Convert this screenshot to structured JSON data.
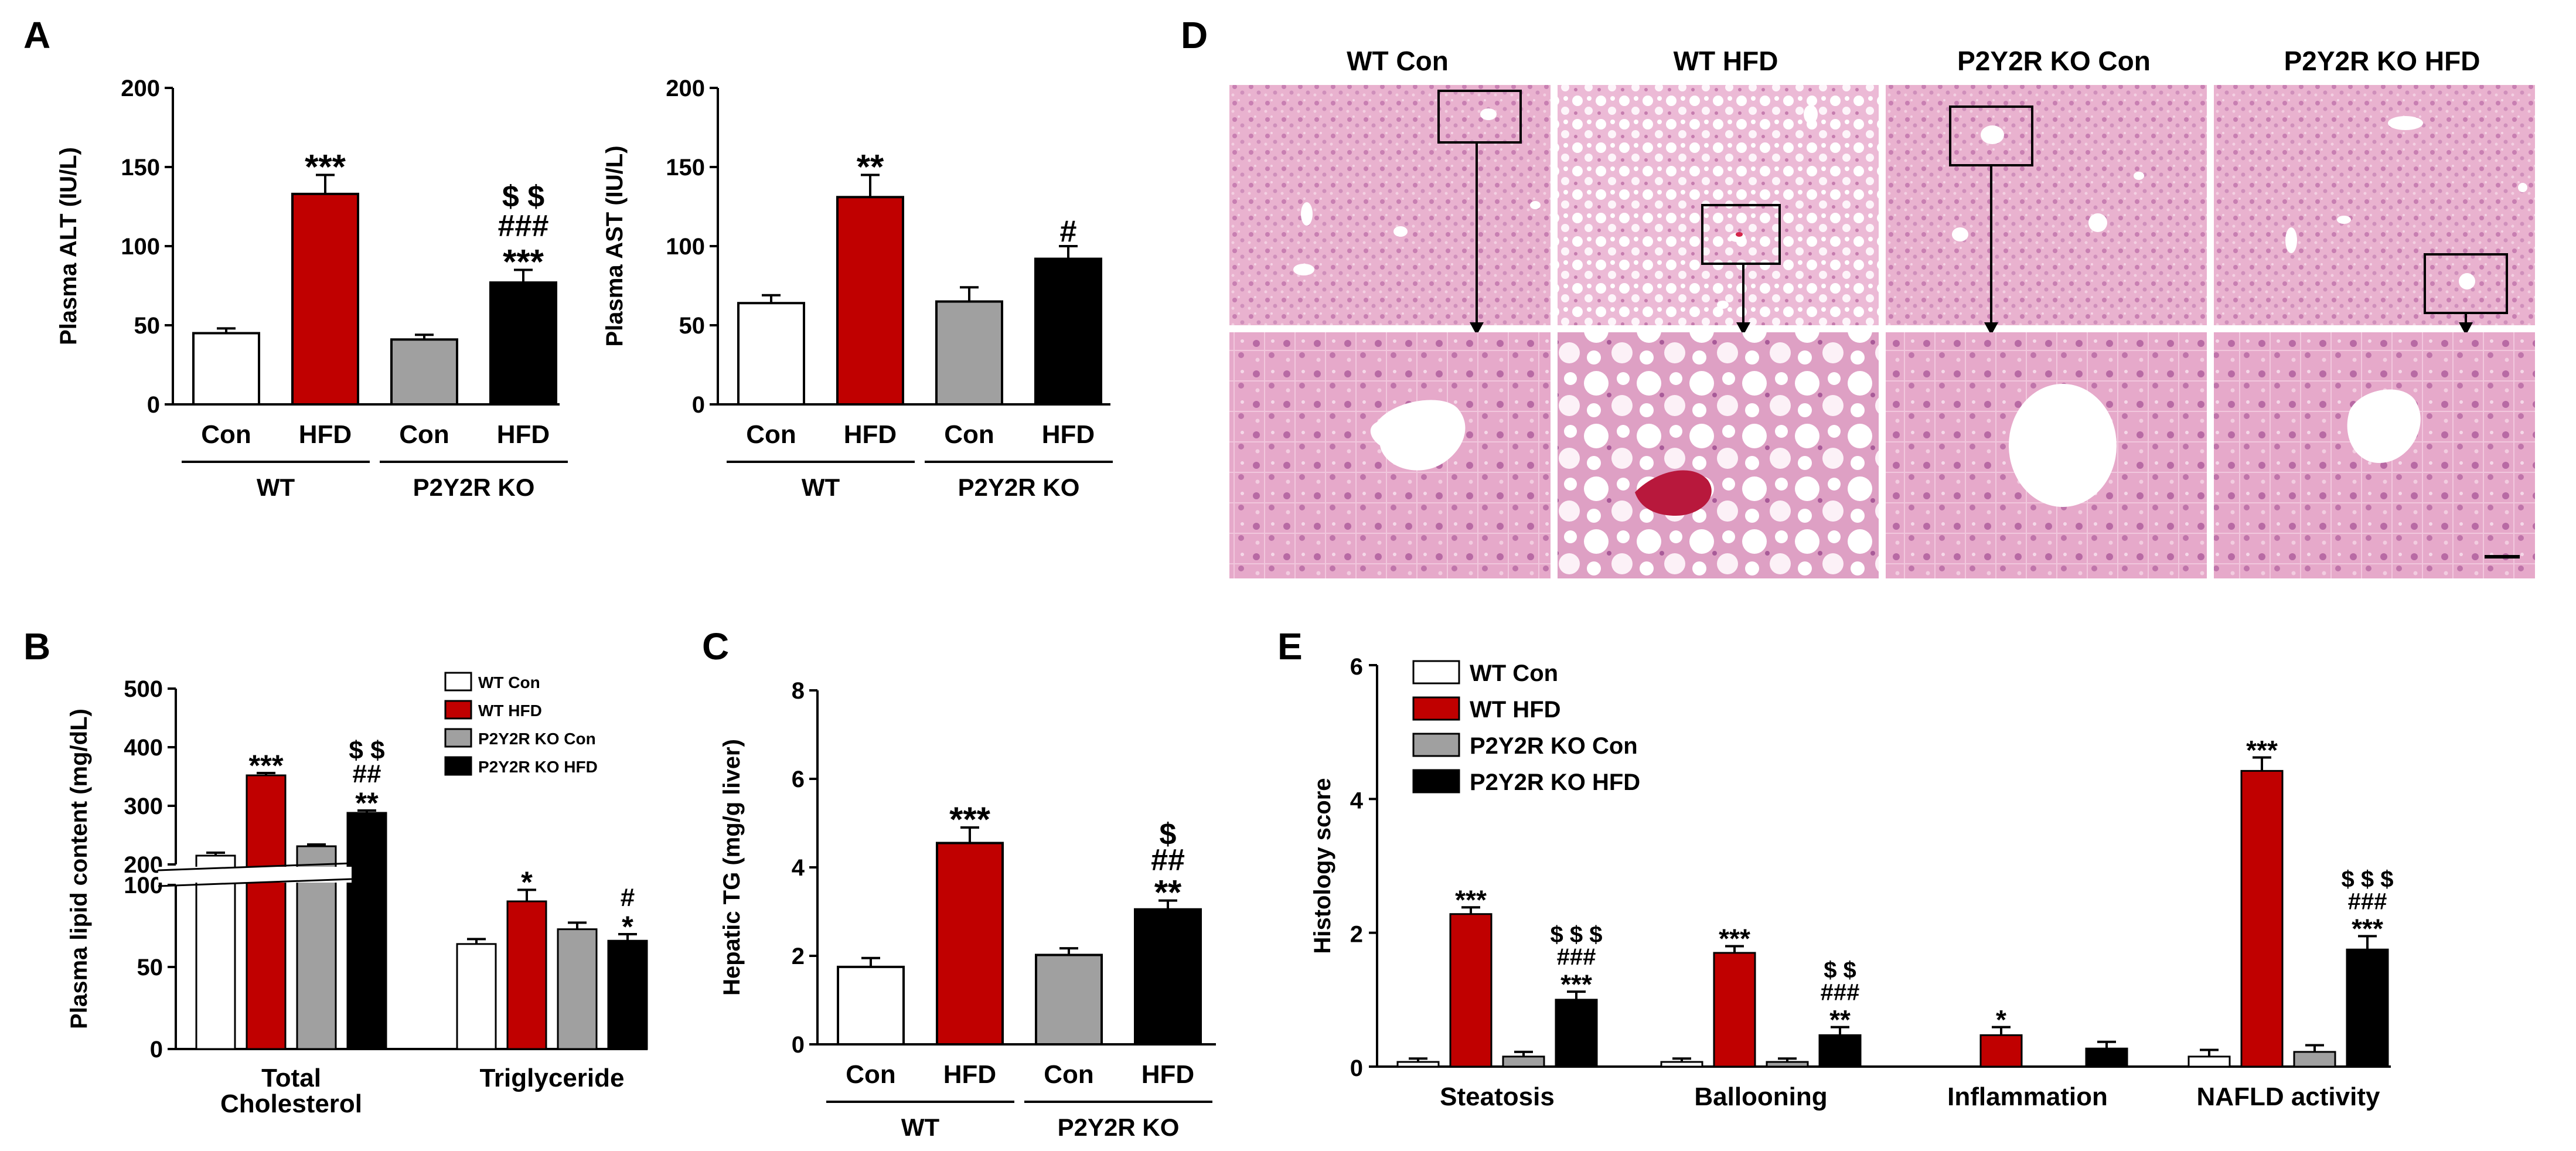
{
  "panels": {
    "a": "A",
    "b": "B",
    "c": "C",
    "d": "D",
    "e": "E"
  },
  "colors": {
    "WT Con": "#ffffff",
    "WT HFD": "#c00000",
    "P2Y2R KO Con": "#a0a0a0",
    "P2Y2R KO HFD": "#000000"
  },
  "chart_data": [
    {
      "id": "alt",
      "type": "bar",
      "ylabel": "Plasma ALT (IU/L)",
      "ylim": [
        0,
        200
      ],
      "yticks": [
        0,
        50,
        100,
        150,
        200
      ],
      "categories": [
        "Con",
        "HFD",
        "Con",
        "HFD"
      ],
      "series_colors": [
        "WT Con",
        "WT HFD",
        "P2Y2R KO Con",
        "P2Y2R KO HFD"
      ],
      "values": [
        45,
        133,
        41,
        77
      ],
      "errors": [
        3,
        12,
        3,
        8
      ],
      "annotations": [
        [],
        [
          "***"
        ],
        [],
        [
          "$ $",
          "###",
          "***"
        ]
      ],
      "groups": [
        {
          "label": "WT",
          "span": [
            0,
            1
          ]
        },
        {
          "label": "P2Y2R KO",
          "span": [
            2,
            3
          ]
        }
      ]
    },
    {
      "id": "ast",
      "type": "bar",
      "ylabel": "Plasma AST (IU/L)",
      "ylim": [
        0,
        200
      ],
      "yticks": [
        0,
        50,
        100,
        150,
        200
      ],
      "categories": [
        "Con",
        "HFD",
        "Con",
        "HFD"
      ],
      "series_colors": [
        "WT Con",
        "WT HFD",
        "P2Y2R KO Con",
        "P2Y2R KO HFD"
      ],
      "values": [
        64,
        131,
        65,
        92
      ],
      "errors": [
        5,
        14,
        9,
        8
      ],
      "annotations": [
        [],
        [
          "**"
        ],
        [],
        [
          "#"
        ]
      ],
      "groups": [
        {
          "label": "WT",
          "span": [
            0,
            1
          ]
        },
        {
          "label": "P2Y2R KO",
          "span": [
            2,
            3
          ]
        }
      ]
    },
    {
      "id": "lipid",
      "type": "bar",
      "ylabel": "Plasma lipid content (mg/dL)",
      "axis_break": [
        100,
        200
      ],
      "yticks_lower": [
        0,
        50,
        100
      ],
      "yticks_upper": [
        200,
        300,
        400,
        500
      ],
      "categories": [
        "Total\nCholesterol",
        "Triglyceride"
      ],
      "series": [
        {
          "name": "WT Con",
          "values": [
            215,
            64
          ],
          "errors": [
            5,
            3
          ],
          "annotations": [
            [],
            []
          ]
        },
        {
          "name": "WT HFD",
          "values": [
            352,
            90
          ],
          "errors": [
            4,
            7
          ],
          "annotations": [
            [
              "***"
            ],
            [
              "*"
            ]
          ]
        },
        {
          "name": "P2Y2R KO Con",
          "values": [
            231,
            73
          ],
          "errors": [
            3,
            4
          ],
          "annotations": [
            [],
            []
          ]
        },
        {
          "name": "P2Y2R KO HFD",
          "values": [
            288,
            66
          ],
          "errors": [
            4,
            4
          ],
          "annotations": [
            [
              "$ $",
              "##",
              "**"
            ],
            [
              "#",
              "*"
            ]
          ]
        }
      ],
      "legend": [
        "WT Con",
        "WT HFD",
        "P2Y2R KO Con",
        "P2Y2R KO HFD"
      ]
    },
    {
      "id": "tg",
      "type": "bar",
      "ylabel": "Hepatic TG (mg/g liver)",
      "ylim": [
        0,
        8
      ],
      "yticks": [
        0,
        2,
        4,
        6,
        8
      ],
      "categories": [
        "Con",
        "HFD",
        "Con",
        "HFD"
      ],
      "series_colors": [
        "WT Con",
        "WT HFD",
        "P2Y2R KO Con",
        "P2Y2R KO HFD"
      ],
      "values": [
        1.75,
        4.55,
        2.02,
        3.05
      ],
      "errors": [
        0.2,
        0.35,
        0.15,
        0.2
      ],
      "annotations": [
        [],
        [
          "***"
        ],
        [],
        [
          "$",
          "##",
          "**"
        ]
      ],
      "groups": [
        {
          "label": "WT",
          "span": [
            0,
            1
          ]
        },
        {
          "label": "P2Y2R KO",
          "span": [
            2,
            3
          ]
        }
      ]
    },
    {
      "id": "histology",
      "type": "bar",
      "ylabel": "Histology score",
      "ylim": [
        0,
        6
      ],
      "yticks": [
        0,
        2,
        4,
        6
      ],
      "categories": [
        "Steatosis",
        "Ballooning",
        "Inflammation",
        "NAFLD activity"
      ],
      "series": [
        {
          "name": "WT Con",
          "values": [
            0.07,
            0.07,
            0,
            0.15
          ],
          "errors": [
            0.05,
            0.05,
            0,
            0.1
          ],
          "annotations": [
            [],
            [],
            [],
            []
          ]
        },
        {
          "name": "WT HFD",
          "values": [
            2.28,
            1.7,
            0.47,
            4.42
          ],
          "errors": [
            0.1,
            0.1,
            0.12,
            0.2
          ],
          "annotations": [
            [
              "***"
            ],
            [
              "***"
            ],
            [
              "*"
            ],
            [
              "***"
            ]
          ]
        },
        {
          "name": "P2Y2R KO Con",
          "values": [
            0.15,
            0.07,
            0,
            0.22
          ],
          "errors": [
            0.07,
            0.05,
            0,
            0.1
          ],
          "annotations": [
            [],
            [],
            [],
            []
          ]
        },
        {
          "name": "P2Y2R KO HFD",
          "values": [
            1.0,
            0.47,
            0.27,
            1.75
          ],
          "errors": [
            0.12,
            0.12,
            0.1,
            0.2
          ],
          "annotations": [
            [
              "$ $ $",
              "###",
              "***"
            ],
            [
              "$ $",
              "###",
              "**"
            ],
            [],
            [
              "$ $ $",
              "###",
              "***"
            ]
          ]
        }
      ],
      "legend": [
        "WT Con",
        "WT HFD",
        "P2Y2R KO Con",
        "P2Y2R KO HFD"
      ]
    }
  ],
  "histology": {
    "titles": [
      "WT Con",
      "WT HFD",
      "P2Y2R KO Con",
      "P2Y2R KO HFD"
    ]
  }
}
